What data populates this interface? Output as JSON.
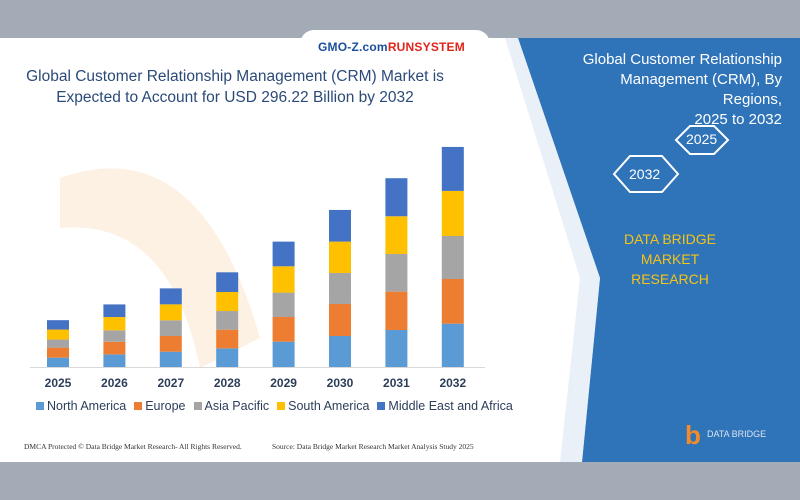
{
  "brand": {
    "part1": "GMO-Z.com",
    "part2": "RUNSYSTEM"
  },
  "header": {
    "title_line1": "Global Customer Relationship Management (CRM) Market is",
    "title_line2": "Expected to Account for USD 296.22 Billion by 2032"
  },
  "side": {
    "title_line1": "Global Customer Relationship",
    "title_line2": "Management (CRM), By Regions,",
    "title_line3": "2025 to 2032",
    "hex_a": "2025",
    "hex_b": "2032",
    "company_line1": "DATA BRIDGE MARKET",
    "company_line2": "RESEARCH",
    "logo_text": "DATA BRIDGE"
  },
  "footer": {
    "left": "DMCA Protected © Data Bridge Market Research- All Rights Reserved.",
    "right": "Source: Data Bridge Market Research Market Analysis Study 2025"
  },
  "colors": {
    "blue_panel": "#2f73b8",
    "accent_yellow": "#f6c416"
  },
  "chart_data": {
    "type": "bar",
    "stacked": true,
    "title": "Global Customer Relationship Management (CRM) Market is Expected to Account for USD 296.22 Billion by 2032",
    "xlabel": "",
    "ylabel": "",
    "ylim": [
      0,
      300
    ],
    "grid": false,
    "legend": "bottom",
    "categories": [
      "2025",
      "2026",
      "2027",
      "2028",
      "2029",
      "2030",
      "2031",
      "2032"
    ],
    "series": [
      {
        "name": "North America",
        "color": "#5b9bd5",
        "values": [
          12.6,
          17.0,
          20.6,
          25.1,
          34.1,
          41.7,
          49.8,
          58.3
        ]
      },
      {
        "name": "Europe",
        "color": "#ed7d31",
        "values": [
          13.5,
          17.0,
          21.1,
          25.1,
          33.2,
          43.1,
          51.6,
          60.1
        ]
      },
      {
        "name": "Asia Pacific",
        "color": "#a5a5a5",
        "values": [
          10.8,
          15.3,
          21.1,
          25.1,
          32.8,
          41.7,
          50.7,
          57.9
        ]
      },
      {
        "name": "South America",
        "color": "#ffc000",
        "values": [
          13.5,
          17.9,
          21.5,
          25.6,
          35.4,
          42.2,
          50.7,
          60.6
        ]
      },
      {
        "name": "Middle East and Africa",
        "color": "#4472c4",
        "values": [
          12.6,
          17.0,
          21.5,
          26.5,
          33.2,
          42.6,
          51.2,
          59.2
        ]
      }
    ]
  }
}
